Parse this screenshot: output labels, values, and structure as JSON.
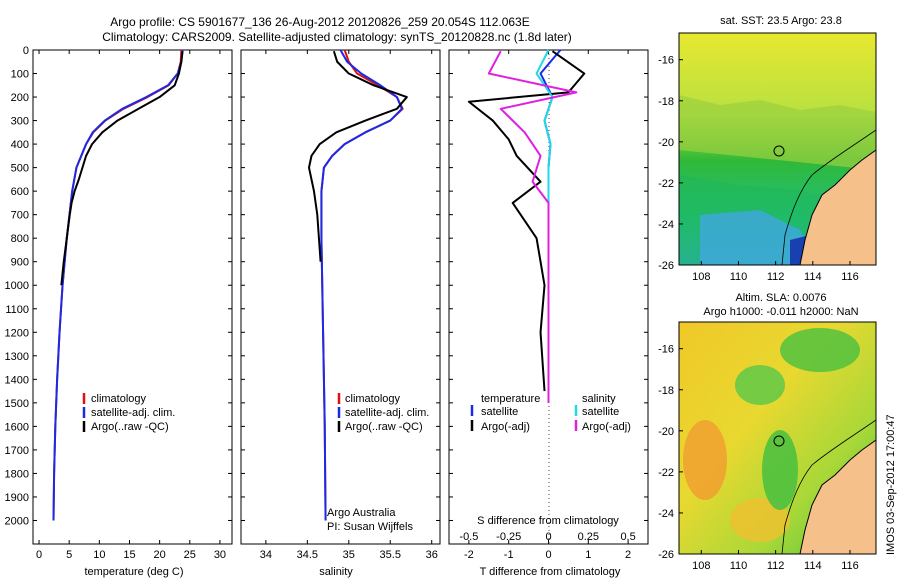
{
  "header": {
    "title_line1": "Argo profile: CS 5901677_136 26-Aug-2012 20120826_259 20.054S 112.063E",
    "title_line2": "Climatology: CARS2009. Satellite-adjusted climatology: synTS_20120828.nc (1.8d later)"
  },
  "credit": "IMOS 03-Sep-2012 17:00:47",
  "colors": {
    "red": "#e01010",
    "blue": "#1a2be8",
    "black": "#000000",
    "cyan": "#20d8e8",
    "magenta": "#e020e0",
    "land": "#f5c08a"
  },
  "chart_data": [
    {
      "type": "line",
      "id": "temperature",
      "xlabel": "temperature (deg C)",
      "ylabel": "",
      "xlim": [
        -1,
        32
      ],
      "ylim": [
        2100,
        0
      ],
      "xticks": [
        0,
        5,
        10,
        15,
        20,
        25,
        30
      ],
      "yticks": [
        0,
        100,
        200,
        300,
        400,
        500,
        600,
        700,
        800,
        900,
        1000,
        1100,
        1200,
        1300,
        1400,
        1500,
        1600,
        1700,
        1800,
        1900,
        2000
      ],
      "legend": [
        "climatology",
        "satellite-adj. clim.",
        "Argo(..raw -QC)"
      ],
      "legend_location": "lower-right",
      "series": [
        {
          "name": "climatology",
          "color": "red",
          "x": [
            23.6,
            23.5,
            23.0,
            21.5,
            18.0,
            14.0,
            11.0,
            9.0,
            7.8,
            7.0,
            6.2,
            5.5,
            4.6,
            3.9,
            3.4,
            3.0,
            2.7,
            2.5,
            2.4
          ],
          "y": [
            0,
            50,
            100,
            150,
            200,
            250,
            300,
            350,
            400,
            450,
            500,
            600,
            800,
            1000,
            1200,
            1400,
            1600,
            1800,
            2000
          ]
        },
        {
          "name": "satellite-adj. clim.",
          "color": "blue",
          "x": [
            23.8,
            23.6,
            23.0,
            21.4,
            17.8,
            13.8,
            10.9,
            8.9,
            7.8,
            7.0,
            6.2,
            5.5,
            4.6,
            3.9,
            3.4,
            3.0,
            2.7,
            2.5,
            2.4
          ],
          "y": [
            0,
            50,
            100,
            150,
            200,
            250,
            300,
            350,
            400,
            450,
            500,
            600,
            800,
            1000,
            1200,
            1400,
            1600,
            1800,
            2000
          ]
        },
        {
          "name": "Argo(..raw -QC)",
          "color": "black",
          "x": [
            23.8,
            23.6,
            23.2,
            22.5,
            20.0,
            16.5,
            13.0,
            10.5,
            8.8,
            7.8,
            7.2,
            6.6,
            5.9,
            5.4,
            5.1,
            4.6,
            4.1,
            3.7
          ],
          "y": [
            5,
            50,
            100,
            150,
            200,
            250,
            300,
            350,
            400,
            450,
            500,
            550,
            600,
            650,
            700,
            800,
            900,
            1000
          ]
        }
      ]
    },
    {
      "type": "line",
      "id": "salinity",
      "xlabel": "salinity",
      "xlim": [
        33.7,
        36.1
      ],
      "ylim": [
        2100,
        0
      ],
      "xticks": [
        34,
        34.5,
        35,
        35.5,
        36
      ],
      "legend": [
        "climatology",
        "satellite-adj. clim.",
        "Argo(..raw -QC)"
      ],
      "legend_location": "lower-right",
      "annotations": [
        "Argo Australia",
        "PI: Susan Wijffels"
      ],
      "series": [
        {
          "name": "climatology",
          "color": "red",
          "x": [
            34.95,
            35.0,
            35.1,
            35.35,
            35.58,
            35.65,
            35.5,
            35.2,
            34.95,
            34.8,
            34.7,
            34.67,
            34.67,
            34.68,
            34.69,
            34.7,
            34.71,
            34.72
          ],
          "y": [
            0,
            50,
            100,
            150,
            200,
            250,
            300,
            350,
            400,
            450,
            500,
            600,
            800,
            1000,
            1200,
            1400,
            1600,
            2000
          ]
        },
        {
          "name": "satellite-adj. clim.",
          "color": "blue",
          "x": [
            34.9,
            34.98,
            35.15,
            35.38,
            35.58,
            35.64,
            35.5,
            35.2,
            34.95,
            34.8,
            34.7,
            34.67,
            34.67,
            34.68,
            34.69,
            34.7,
            34.71,
            34.72
          ],
          "y": [
            0,
            50,
            100,
            150,
            200,
            250,
            300,
            350,
            400,
            450,
            500,
            600,
            800,
            1000,
            1200,
            1400,
            1600,
            2000
          ]
        },
        {
          "name": "Argo(..raw -QC)",
          "color": "black",
          "x": [
            34.82,
            34.86,
            35.0,
            35.3,
            35.7,
            35.58,
            35.2,
            34.85,
            34.65,
            34.55,
            34.52,
            34.58,
            34.62,
            34.64,
            34.66
          ],
          "y": [
            5,
            50,
            100,
            150,
            200,
            250,
            300,
            350,
            400,
            450,
            500,
            600,
            700,
            800,
            900
          ]
        }
      ]
    },
    {
      "type": "line",
      "id": "differences",
      "xlabel": "T difference from climatology",
      "xlabel_top": "S difference from climatology",
      "xlim": [
        -2.5,
        2.5
      ],
      "ylim": [
        2100,
        0
      ],
      "xticks": [
        -2,
        -1,
        0,
        1,
        2
      ],
      "xticks_top": [
        -0.5,
        -0.25,
        0,
        0.25,
        0.5
      ],
      "legend_t": [
        "temperature",
        "satellite",
        "Argo(-adj)"
      ],
      "legend_s": [
        "salinity",
        "satellite",
        "Argo(-adj)"
      ],
      "series": [
        {
          "name": "satellite",
          "color": "blue",
          "x": [
            0.3,
            -0.2,
            0.1,
            -0.1,
            0.05,
            0,
            0,
            0,
            0
          ],
          "y": [
            0,
            100,
            200,
            300,
            400,
            500,
            600,
            800,
            1000
          ]
        },
        {
          "name": "Argo(-adj)",
          "color": "black",
          "x": [
            0.1,
            0.9,
            0.5,
            -2.0,
            -1.4,
            -1.0,
            -0.8,
            -0.2,
            -0.9,
            -0.3,
            -0.1,
            -0.2,
            -0.1
          ],
          "y": [
            5,
            100,
            180,
            220,
            300,
            380,
            450,
            560,
            650,
            800,
            1000,
            1200,
            1450
          ]
        },
        {
          "name": "satellite",
          "color": "cyan",
          "x": [
            0,
            -0.3,
            0.1,
            -0.1,
            0.05,
            0,
            0,
            0,
            0,
            0
          ],
          "y": [
            0,
            100,
            200,
            300,
            400,
            500,
            600,
            700,
            800,
            1500
          ]
        },
        {
          "name": "Argo(-adj)",
          "color": "magenta",
          "x": [
            -1.2,
            -1.5,
            0.7,
            -1.2,
            -0.6,
            -0.2,
            -0.4,
            0.0,
            0.0,
            0.0
          ],
          "y": [
            5,
            100,
            180,
            250,
            350,
            450,
            560,
            650,
            1000,
            1500
          ]
        }
      ]
    },
    {
      "type": "heatmap",
      "id": "sst_map",
      "title": "sat. SST: 23.5 Argo: 23.8",
      "xlim": [
        106.8,
        117.4
      ],
      "ylim": [
        -26,
        -14.7
      ],
      "xticks": [
        108,
        110,
        112,
        114,
        116
      ],
      "yticks": [
        -16,
        -18,
        -20,
        -22,
        -24,
        -26
      ]
    },
    {
      "type": "heatmap",
      "id": "sla_map",
      "title_line1": "Altim. SLA: 0.0076",
      "title_line2": "Argo h1000: -0.011 h2000: NaN",
      "xlim": [
        106.8,
        117.4
      ],
      "ylim": [
        -26,
        -14.7
      ],
      "xticks": [
        108,
        110,
        112,
        114,
        116
      ],
      "yticks": [
        -16,
        -18,
        -20,
        -22,
        -24,
        -26
      ]
    }
  ]
}
